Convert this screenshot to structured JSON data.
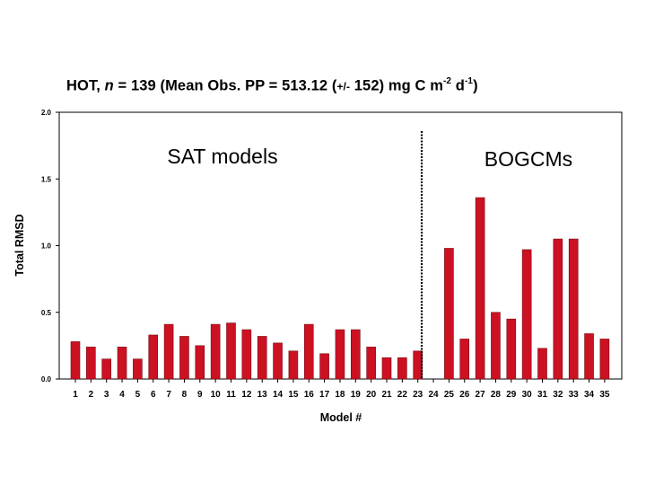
{
  "title": {
    "part1": "HOT, ",
    "italic_n": "n",
    "part2": " = 139 (Mean Obs. PP = 513.12 (",
    "plusminus": "+/-",
    "part3": " 152) mg C m",
    "sup1": "-2",
    "part4": " d",
    "sup2": "-1",
    "part5": ")"
  },
  "chart_data": {
    "type": "bar",
    "xlabel": "Model #",
    "ylabel": "Total RMSD",
    "ylim": [
      0,
      2.0
    ],
    "yticks": [
      "0.0",
      "0.5",
      "1.0",
      "1.5",
      "2.0"
    ],
    "yticks_values": [
      0,
      0.5,
      1.0,
      1.5,
      2.0
    ],
    "categories": [
      "1",
      "2",
      "3",
      "4",
      "5",
      "6",
      "7",
      "8",
      "9",
      "10",
      "11",
      "12",
      "13",
      "14",
      "15",
      "16",
      "17",
      "18",
      "19",
      "20",
      "21",
      "22",
      "23",
      "24",
      "25",
      "26",
      "27",
      "28",
      "29",
      "30",
      "31",
      "32",
      "33",
      "34",
      "35"
    ],
    "values": [
      0.28,
      0.24,
      0.15,
      0.24,
      0.15,
      0.33,
      0.41,
      0.32,
      0.25,
      0.41,
      0.42,
      0.37,
      0.32,
      0.27,
      0.21,
      0.41,
      0.19,
      0.37,
      0.37,
      0.24,
      0.16,
      0.16,
      0.21,
      null,
      0.98,
      0.3,
      1.36,
      0.5,
      0.45,
      0.97,
      0.23,
      1.05,
      1.05,
      0.34,
      0.3
    ],
    "bar_color": "#cc1122",
    "grid": false,
    "annotations": [
      {
        "text": "SAT models"
      },
      {
        "text": "BOGCMs"
      }
    ],
    "divider_after_category": "23"
  }
}
